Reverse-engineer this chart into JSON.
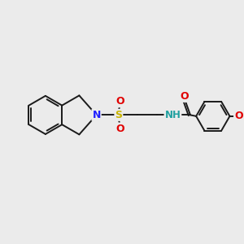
{
  "bg_color": "#ebebeb",
  "bond_color": "#1a1a1a",
  "bond_width": 1.4,
  "figsize": [
    3.0,
    3.0
  ],
  "dpi": 100,
  "xlim": [
    0,
    10
  ],
  "ylim": [
    0,
    10
  ],
  "atoms": {
    "N_blue": {
      "color": "#2020ff"
    },
    "S_yellow": {
      "color": "#c8b400"
    },
    "O_red": {
      "color": "#e00000"
    },
    "N_teal": {
      "color": "#20a0a0"
    },
    "C_black": {
      "color": "#1a1a1a"
    }
  }
}
